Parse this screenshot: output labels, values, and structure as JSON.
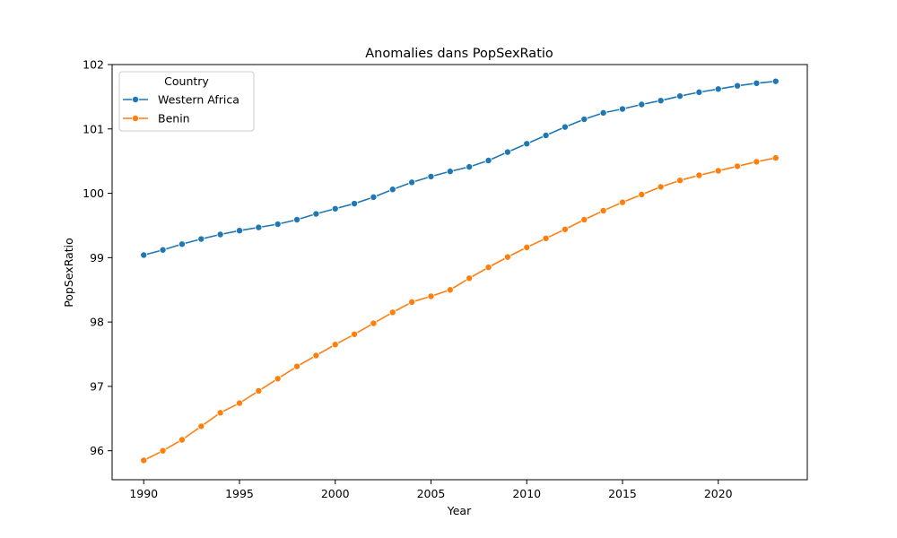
{
  "chart_data": {
    "type": "line",
    "title": "Anomalies dans PopSexRatio",
    "xlabel": "Year",
    "ylabel": "PopSexRatio",
    "xlim": [
      1988.35,
      2024.65
    ],
    "ylim": [
      95.55,
      102.0
    ],
    "x_ticks": [
      1990,
      1995,
      2000,
      2005,
      2010,
      2015,
      2020
    ],
    "y_ticks": [
      96,
      97,
      98,
      99,
      100,
      101,
      102
    ],
    "grid": false,
    "legend": {
      "title": "Country",
      "placement": "top-left"
    },
    "x": [
      1990,
      1991,
      1992,
      1993,
      1994,
      1995,
      1996,
      1997,
      1998,
      1999,
      2000,
      2001,
      2002,
      2003,
      2004,
      2005,
      2006,
      2007,
      2008,
      2009,
      2010,
      2011,
      2012,
      2013,
      2014,
      2015,
      2016,
      2017,
      2018,
      2019,
      2020,
      2021,
      2022,
      2023
    ],
    "series": [
      {
        "name": "Western Africa",
        "color": "#1f77b4",
        "marker": "circle",
        "values": [
          99.04,
          99.12,
          99.21,
          99.29,
          99.36,
          99.42,
          99.47,
          99.52,
          99.59,
          99.68,
          99.76,
          99.84,
          99.94,
          100.06,
          100.17,
          100.26,
          100.34,
          100.41,
          100.51,
          100.64,
          100.77,
          100.9,
          101.03,
          101.15,
          101.25,
          101.31,
          101.38,
          101.44,
          101.51,
          101.57,
          101.62,
          101.67,
          101.71,
          101.74
        ]
      },
      {
        "name": "Benin",
        "color": "#ff7f0e",
        "marker": "circle",
        "values": [
          95.85,
          96.0,
          96.17,
          96.38,
          96.59,
          96.74,
          96.93,
          97.12,
          97.31,
          97.48,
          97.65,
          97.81,
          97.98,
          98.15,
          98.31,
          98.4,
          98.5,
          98.68,
          98.85,
          99.01,
          99.16,
          99.3,
          99.44,
          99.59,
          99.73,
          99.86,
          99.98,
          100.1,
          100.2,
          100.28,
          100.35,
          100.42,
          100.49,
          100.55
        ]
      }
    ]
  }
}
